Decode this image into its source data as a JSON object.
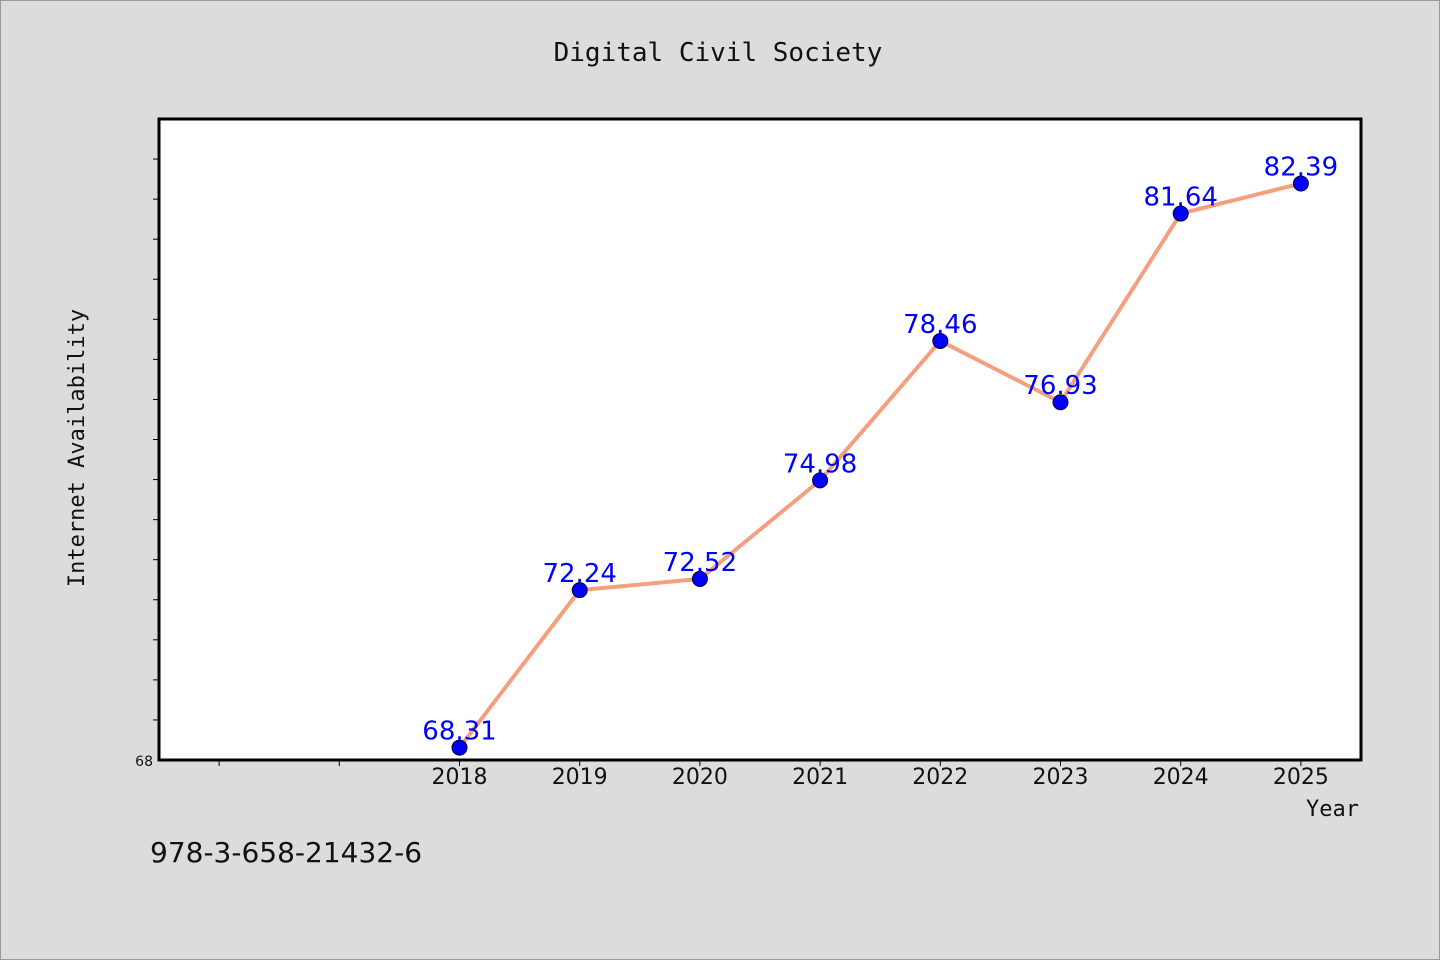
{
  "chart_data": {
    "type": "line",
    "title": "Digital Civil Society",
    "xlabel": "Year",
    "ylabel": "Internet Availability",
    "x": [
      "2018",
      "2019",
      "2020",
      "2021",
      "2022",
      "2023",
      "2024",
      "2025"
    ],
    "series": [
      {
        "values": [
          68.31,
          72.24,
          72.52,
          74.98,
          78.46,
          76.93,
          81.64,
          82.39
        ]
      }
    ],
    "data_labels": [
      "68.31",
      "72.24",
      "72.52",
      "74.98",
      "78.46",
      "76.93",
      "81.64",
      "82.39"
    ],
    "ylim": [
      68,
      84
    ],
    "ytick_labels": [
      "68"
    ],
    "xlim": [
      2015.5,
      2025.5
    ],
    "grid": false,
    "line_color": "#f4a07f",
    "marker_color": "#0000ff",
    "label_color": "#0000ff"
  },
  "footer": {
    "isbn": "978-3-658-21432-6"
  }
}
